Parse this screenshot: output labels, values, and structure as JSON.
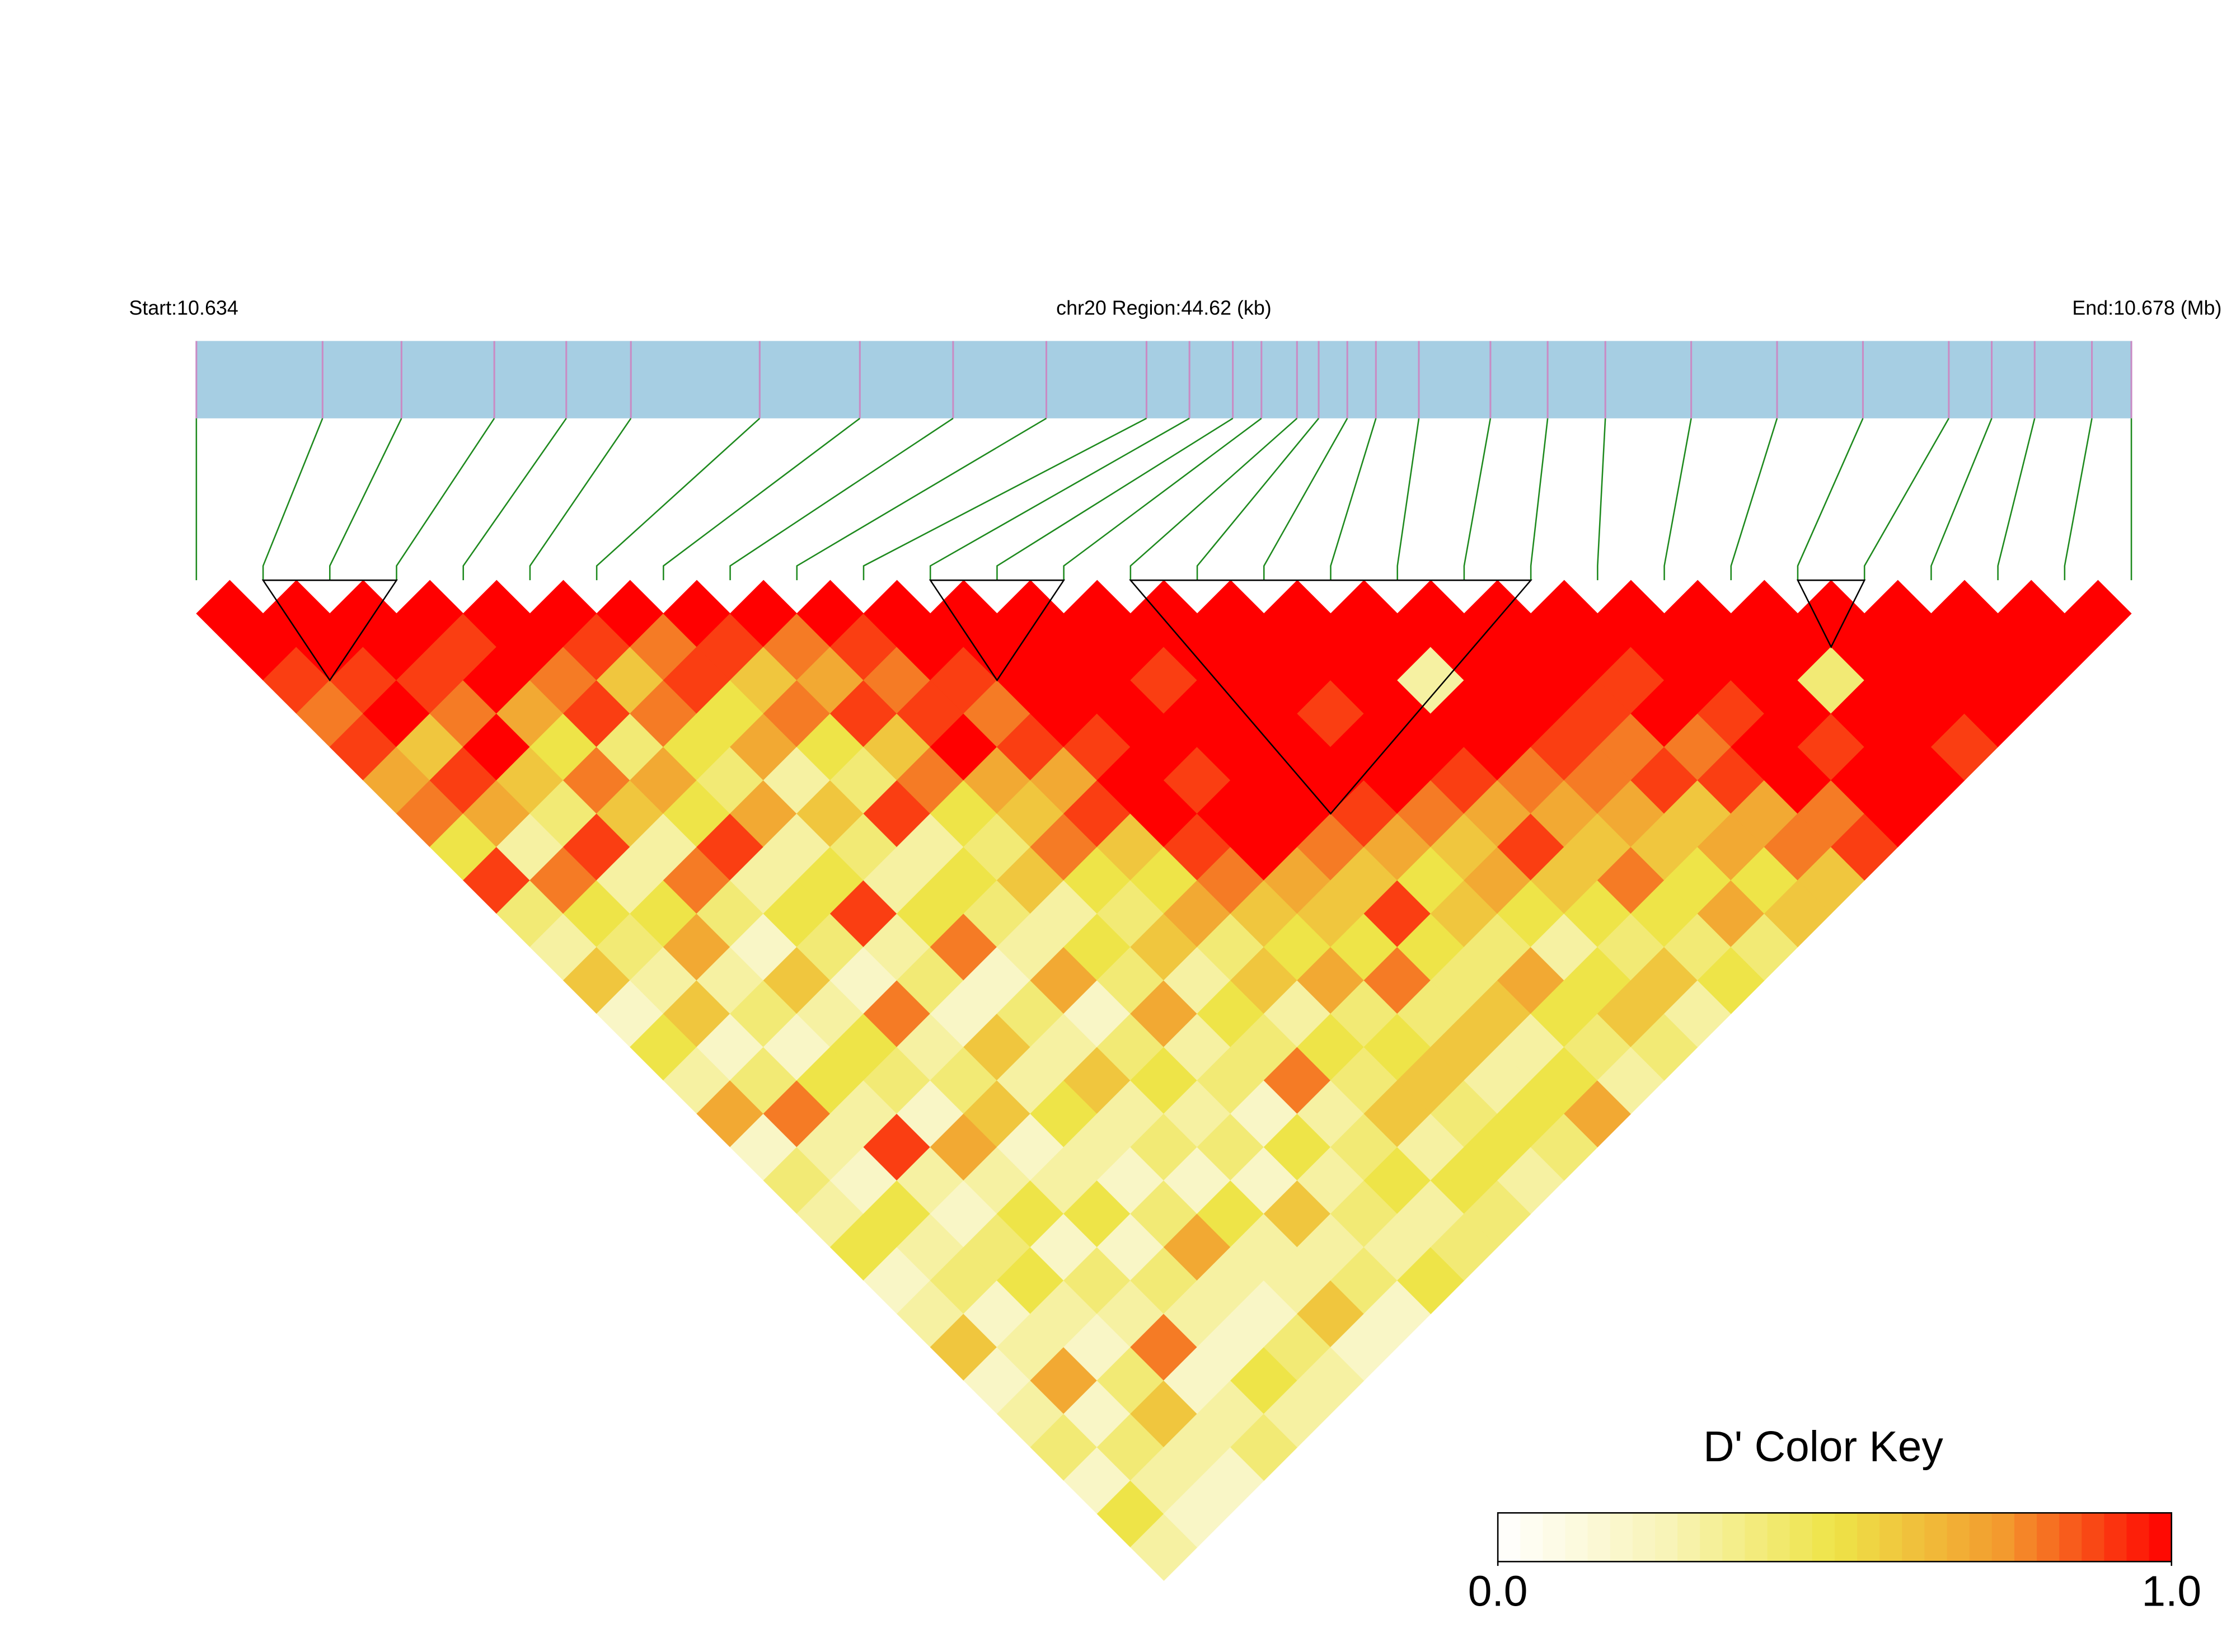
{
  "chart_data": {
    "type": "ld_heatmap",
    "start_label": "Start:10.634",
    "region_label": "chr20 Region:44.62 (kb)",
    "end_label": "End:10.678 (Mb)",
    "region_kb": 44.62,
    "snp_positions": [
      0,
      2.91,
      4.73,
      6.87,
      8.53,
      10.02,
      12.99,
      15.3,
      17.45,
      19.6,
      21.91,
      22.9,
      23.9,
      24.56,
      25.38,
      25.88,
      26.54,
      27.2,
      28.19,
      29.84,
      31.16,
      32.49,
      34.47,
      36.45,
      38.43,
      40.41,
      41.4,
      42.39,
      43.71,
      44.62
    ],
    "ld": [
      [
        1,
        1,
        0.9,
        0.8,
        0.9,
        0.7,
        0.8,
        0.5,
        0.9,
        0.4,
        0.3,
        0.6,
        0.2,
        0.5,
        0.3,
        0.7,
        0.2,
        0.4,
        0.3,
        0.5,
        0.2,
        0.3,
        0.6,
        0.2,
        0.3,
        0.4,
        0.2,
        0.5,
        0.3
      ],
      [
        1,
        1,
        0.9,
        1,
        0.6,
        0.9,
        0.7,
        0.3,
        0.8,
        0.5,
        0.4,
        0.3,
        0.6,
        0.2,
        0.4,
        0.8,
        0.3,
        0.2,
        0.5,
        0.3,
        0.4,
        0.2,
        0.3,
        0.7,
        0.2,
        0.4,
        0.3,
        0.2
      ],
      [
        1,
        1,
        0.9,
        0.8,
        1,
        0.6,
        0.4,
        0.9,
        0.3,
        0.5,
        0.7,
        0.3,
        0.4,
        0.2,
        0.5,
        0.3,
        0.9,
        0.3,
        0.2,
        0.4,
        0.5,
        0.3,
        0.2,
        0.4,
        0.6,
        0.3,
        0.2
      ],
      [
        1,
        0.9,
        1,
        0.7,
        0.5,
        0.8,
        0.6,
        0.3,
        0.8,
        0.4,
        0.2,
        0.6,
        0.3,
        0.5,
        0.4,
        0.2,
        0.7,
        0.3,
        0.5,
        0.2,
        0.4,
        0.3,
        0.8,
        0.2,
        0.3,
        0.4
      ],
      [
        1,
        1,
        0.8,
        0.9,
        0.4,
        0.7,
        0.5,
        0.9,
        0.3,
        0.5,
        0.4,
        0.2,
        0.8,
        0.3,
        0.4,
        0.6,
        0.2,
        0.3,
        0.5,
        0.2,
        0.4,
        0.3,
        0.2,
        0.5,
        0.3
      ],
      [
        1,
        0.9,
        0.6,
        0.8,
        0.5,
        0.4,
        0.7,
        0.3,
        0.5,
        0.9,
        0.3,
        0.4,
        0.2,
        0.6,
        0.3,
        0.5,
        0.3,
        0.2,
        0.4,
        0.7,
        0.3,
        0.2,
        0.4,
        0.3
      ],
      [
        1,
        0.8,
        0.9,
        0.5,
        0.7,
        0.3,
        0.6,
        0.4,
        0.3,
        0.5,
        0.8,
        0.2,
        0.4,
        0.3,
        0.6,
        0.3,
        0.4,
        0.2,
        0.5,
        0.3,
        0.3,
        0.6,
        0.2
      ],
      [
        1,
        0.9,
        0.6,
        0.8,
        0.5,
        0.4,
        0.9,
        0.3,
        0.5,
        0.4,
        0.3,
        0.7,
        0.2,
        0.4,
        0.5,
        0.3,
        0.4,
        0.2,
        0.6,
        0.3,
        0.4,
        0.2
      ],
      [
        1,
        0.8,
        0.7,
        0.9,
        0.6,
        0.8,
        0.5,
        0.4,
        0.6,
        0.3,
        0.5,
        0.4,
        0.7,
        0.3,
        0.4,
        0.2,
        0.5,
        0.3,
        0.4,
        0.3,
        0.5
      ],
      [
        1,
        0.9,
        0.8,
        0.9,
        1,
        0.7,
        0.6,
        0.8,
        0.5,
        0.4,
        0.6,
        0.3,
        0.5,
        0.4,
        0.8,
        0.3,
        0.4,
        0.5,
        0.3,
        0.4
      ],
      [
        1,
        1,
        0.9,
        0.8,
        0.9,
        0.7,
        0.9,
        0.6,
        0.5,
        0.7,
        0.4,
        0.6,
        0.3,
        0.5,
        0.4,
        0.6,
        0.3,
        0.5,
        0.4
      ],
      [
        1,
        1,
        1,
        1,
        0.9,
        1,
        1,
        0.9,
        0.8,
        0.6,
        0.5,
        0.7,
        0.4,
        0.5,
        0.6,
        0.4,
        0.5,
        0.3
      ],
      [
        1,
        1,
        1,
        1,
        1,
        0.9,
        1,
        1,
        0.7,
        0.6,
        0.5,
        0.8,
        0.4,
        0.6,
        0.3,
        0.5,
        0.4
      ],
      [
        1,
        1,
        0.9,
        1,
        1,
        1,
        1,
        0.8,
        0.6,
        0.9,
        0.5,
        0.4,
        0.6,
        0.3,
        0.5,
        0.7
      ],
      [
        1,
        1,
        1,
        1,
        1,
        1,
        0.9,
        0.7,
        0.5,
        0.6,
        0.4,
        0.7,
        0.5,
        0.4,
        0.3
      ],
      [
        1,
        1,
        1,
        0.9,
        1,
        1,
        0.8,
        0.6,
        0.7,
        0.5,
        0.3,
        0.5,
        0.6,
        0.4
      ],
      [
        1,
        1,
        1,
        1,
        1,
        0.9,
        0.7,
        0.9,
        0.6,
        0.5,
        0.4,
        0.6,
        0.3
      ],
      [
        1,
        1,
        0.3,
        1,
        1,
        0.8,
        0.7,
        0.6,
        0.8,
        0.5,
        0.4,
        0.5
      ],
      [
        1,
        1,
        1,
        1,
        0.9,
        0.8,
        0.7,
        0.6,
        0.5,
        0.7,
        0.4
      ],
      [
        1,
        1,
        1,
        0.9,
        0.8,
        0.9,
        0.6,
        0.7,
        0.5,
        0.6
      ],
      [
        1,
        1,
        0.9,
        1,
        0.8,
        0.9,
        0.7,
        0.8,
        0.6
      ],
      [
        1,
        1,
        1,
        0.9,
        1,
        1,
        0.8,
        0.9
      ],
      [
        1,
        1,
        1,
        1,
        0.9,
        1,
        1
      ],
      [
        1,
        1,
        0.4,
        1,
        1,
        1
      ],
      [
        1,
        1,
        1,
        1,
        0.9
      ],
      [
        1,
        1,
        1,
        1
      ],
      [
        1,
        1,
        1
      ],
      [
        1,
        1
      ],
      [
        1
      ]
    ],
    "blocks": [
      [
        1,
        3
      ],
      [
        11,
        13
      ],
      [
        14,
        20
      ],
      [
        24,
        25
      ]
    ],
    "zlim": [
      0,
      1
    ],
    "colors": [
      "#ffffff",
      "#f8f4b8",
      "#eee448",
      "#f39a2e",
      "#ff0000"
    ],
    "bar_color": "#a6cee3",
    "snp_line_color": "#c98bc4",
    "link_color": "#1e8a1e",
    "color_key": {
      "title": "D' Color Key",
      "ticks": [
        {
          "value": 0,
          "label": "0.0"
        },
        {
          "value": 1,
          "label": "1.0"
        }
      ]
    }
  }
}
